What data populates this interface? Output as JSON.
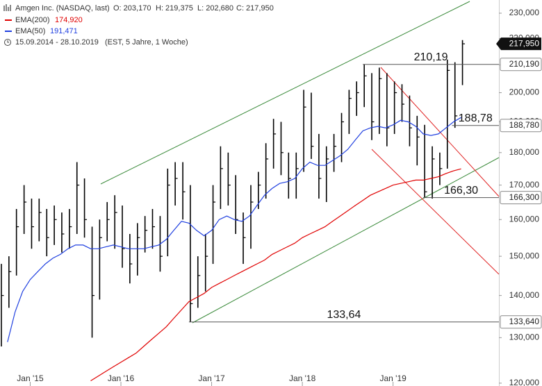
{
  "chart_data": {
    "type": "ohlc",
    "title": "Amgen Inc. (NASDAQ, last)",
    "quote": [
      "O: 203,170",
      "H: 219,375",
      "L: 202,680",
      "C: 217,950"
    ],
    "period": "15.09.2014 - 28.10.2019",
    "period_note": "(EST, 5 Jahre, 1 Woche)",
    "log_y": true,
    "bar_color": "#000000",
    "x": [
      2014.667,
      2014.75,
      2014.833,
      2014.917,
      2015.0,
      2015.083,
      2015.167,
      2015.25,
      2015.333,
      2015.417,
      2015.5,
      2015.583,
      2015.667,
      2015.75,
      2015.833,
      2015.917,
      2016.0,
      2016.083,
      2016.167,
      2016.25,
      2016.333,
      2016.417,
      2016.5,
      2016.583,
      2016.667,
      2016.75,
      2016.833,
      2016.917,
      2017.0,
      2017.083,
      2017.167,
      2017.25,
      2017.333,
      2017.417,
      2017.5,
      2017.583,
      2017.667,
      2017.75,
      2017.833,
      2017.917,
      2018.0,
      2018.083,
      2018.167,
      2018.25,
      2018.333,
      2018.417,
      2018.5,
      2018.583,
      2018.667,
      2018.75,
      2018.833,
      2018.917,
      2019.0,
      2019.083,
      2019.167,
      2019.25,
      2019.333,
      2019.417,
      2019.5,
      2019.583,
      2019.667,
      2019.75
    ],
    "high": [
      148,
      150,
      163,
      170,
      166,
      166,
      163,
      164,
      162,
      163,
      177,
      172,
      158,
      160,
      165,
      167,
      164,
      156,
      159,
      161,
      163,
      161,
      175,
      177,
      177,
      170,
      150,
      156,
      170,
      182,
      180,
      173,
      162,
      170,
      174,
      183,
      191,
      190,
      180,
      180,
      201,
      200,
      186,
      182,
      186,
      193,
      201,
      204,
      210.19,
      207,
      209,
      207,
      204,
      203,
      199,
      192,
      189,
      182,
      180,
      212,
      211,
      219.375
    ],
    "low": [
      128,
      137,
      145,
      156,
      152,
      154,
      150,
      153,
      151,
      152,
      156,
      155,
      130,
      139,
      154,
      152,
      147,
      143,
      145,
      151,
      152,
      146,
      150,
      164,
      160,
      133.64,
      137,
      141,
      148,
      163,
      164,
      156,
      148,
      152,
      163,
      166,
      175,
      173,
      166,
      166,
      174,
      178,
      166,
      165,
      174,
      177,
      186,
      192,
      195,
      184,
      186,
      182,
      186,
      190,
      182,
      176,
      166.3,
      166,
      170,
      175,
      188,
      202.68
    ],
    "close": [
      140,
      146,
      158,
      165,
      158,
      162,
      155,
      160,
      156,
      158,
      170,
      160,
      140,
      155,
      160,
      162,
      152,
      148,
      155,
      157,
      158,
      150,
      170,
      172,
      168,
      138,
      145,
      150,
      165,
      175,
      170,
      160,
      155,
      165,
      170,
      178,
      186,
      180,
      172,
      175,
      195,
      182,
      172,
      178,
      182,
      190,
      198,
      200,
      206,
      190,
      205,
      188,
      200,
      196,
      188,
      185,
      168,
      178,
      175,
      208,
      192,
      217.95
    ],
    "series": [
      {
        "name": "EMA(200)",
        "color": "#e00000",
        "value_label": "174,920",
        "values": [
          null,
          null,
          null,
          null,
          null,
          null,
          null,
          null,
          null,
          null,
          null,
          null,
          120.5,
          121.5,
          122.5,
          123.5,
          124.5,
          125.5,
          126.5,
          128,
          129.5,
          131,
          132.5,
          134.5,
          136.5,
          138.5,
          139.5,
          140.5,
          142,
          143,
          144,
          145,
          146,
          147,
          148,
          149,
          150.5,
          151.5,
          152.5,
          153.5,
          155,
          156,
          157,
          158,
          159.5,
          161,
          162.5,
          164,
          165.5,
          167,
          168,
          169,
          170,
          170.5,
          171,
          171.5,
          171.5,
          172,
          172.5,
          173.5,
          174.3,
          174.92
        ]
      },
      {
        "name": "EMA(50)",
        "color": "#2040e0",
        "value_label": "191,471",
        "values": [
          null,
          129,
          136,
          141,
          144,
          146,
          148,
          149.5,
          150.5,
          152,
          153,
          153,
          152,
          152,
          152.5,
          153,
          152.5,
          152,
          152,
          152,
          152.5,
          153,
          154.5,
          157,
          159.5,
          159,
          157,
          155.5,
          157,
          160,
          161,
          160,
          159.5,
          161,
          164,
          167,
          169,
          170.5,
          171,
          172,
          175,
          177,
          176,
          176,
          177.5,
          179,
          181,
          184,
          187,
          188,
          188.5,
          188,
          189,
          190.5,
          190,
          188.5,
          186,
          185.5,
          186,
          188,
          190,
          191.471
        ]
      }
    ],
    "last_value": {
      "value": 217.95,
      "label": "217,950"
    },
    "levels": [
      {
        "value": 210.19,
        "label": "210,19",
        "axis_label": "210,190",
        "start": 2018.667
      },
      {
        "value": 188.78,
        "label": "188,78",
        "axis_label": "188,780",
        "start": 2019.65
      },
      {
        "value": 166.3,
        "label": "166,30",
        "axis_label": "166,300",
        "start": 2019.333
      },
      {
        "value": 133.64,
        "label": "133,64",
        "axis_label": "133,640",
        "start": 2016.75
      }
    ],
    "xlim": [
      2014.667,
      2020.167
    ],
    "xticks": [
      {
        "value": 2015,
        "label": "Jan '15"
      },
      {
        "value": 2016,
        "label": "Jan '16"
      },
      {
        "value": 2017,
        "label": "Jan '17"
      },
      {
        "value": 2018,
        "label": "Jan '18"
      },
      {
        "value": 2019,
        "label": "Jan '19"
      }
    ],
    "ylim": [
      119.4,
      235.4
    ],
    "yticks": [
      {
        "value": 120,
        "label": "120,000"
      },
      {
        "value": 130,
        "label": "130,000"
      },
      {
        "value": 140,
        "label": "140,000"
      },
      {
        "value": 150,
        "label": "150,000"
      },
      {
        "value": 160,
        "label": "160,000"
      },
      {
        "value": 170,
        "label": "170,000"
      },
      {
        "value": 180,
        "label": "180,000"
      },
      {
        "value": 190,
        "label": "190,000"
      },
      {
        "value": 200,
        "label": "200,000"
      },
      {
        "value": 210,
        "label": "210,000"
      },
      {
        "value": 220,
        "label": "220,000"
      },
      {
        "value": 230,
        "label": "230,000"
      }
    ]
  }
}
